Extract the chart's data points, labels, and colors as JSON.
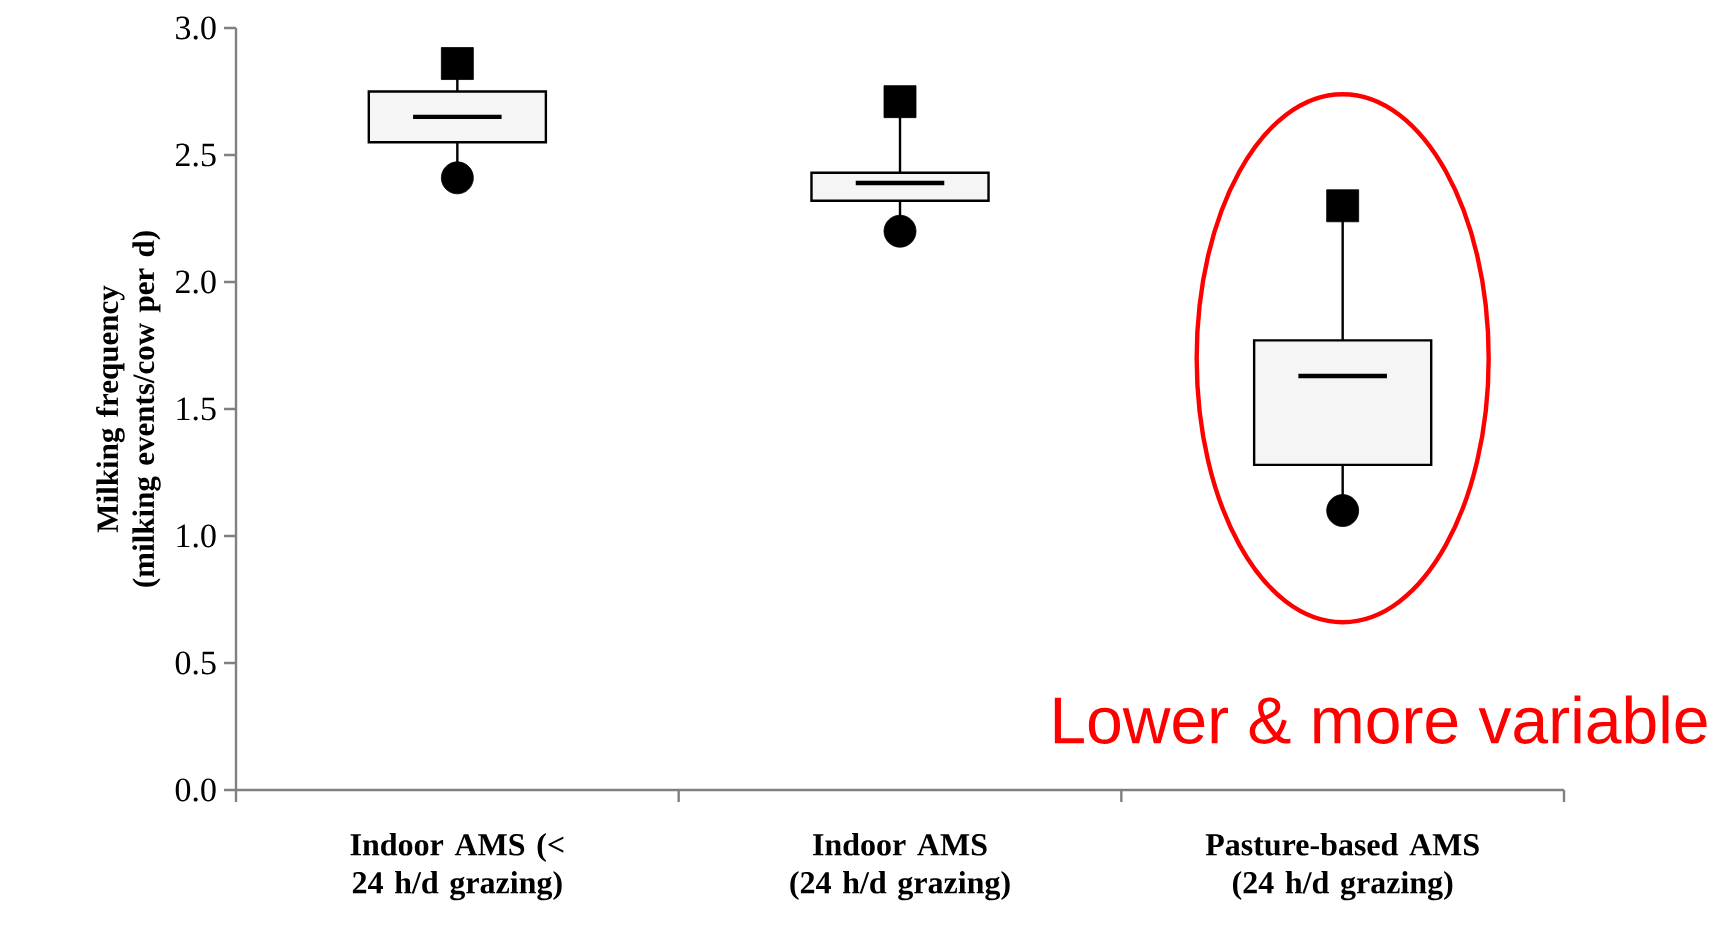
{
  "chart_data": {
    "type": "box",
    "ylabel": "Milking frequency (milking events/cow per d)",
    "categories": [
      "Indoor AMS (< 24 h/d grazing)",
      "Indoor AMS (24 h/d grazing)",
      "Pasture-based AMS (24 h/d grazing)"
    ],
    "boxes": [
      {
        "low": 2.41,
        "q1": 2.55,
        "median": 2.65,
        "q3": 2.75,
        "high": 2.86
      },
      {
        "low": 2.2,
        "q1": 2.32,
        "median": 2.39,
        "q3": 2.43,
        "high": 2.71
      },
      {
        "low": 1.1,
        "q1": 1.28,
        "median": 1.63,
        "q3": 1.77,
        "high": 2.3
      }
    ],
    "series": [
      {
        "type": "scatter",
        "marker": "square",
        "color": "#000000",
        "x": [
          "Indoor AMS (< 24 h/d grazing)",
          "Indoor AMS (24 h/d grazing)",
          "Pasture-based AMS (24 h/d grazing)"
        ],
        "values": [
          2.86,
          2.71,
          2.3
        ]
      },
      {
        "type": "scatter",
        "marker": "circle",
        "color": "#000000",
        "x": [
          "Indoor AMS (< 24 h/d grazing)",
          "Indoor AMS (24 h/d grazing)",
          "Pasture-based AMS (24 h/d grazing)"
        ],
        "values": [
          2.41,
          2.2,
          1.1
        ]
      }
    ],
    "ylim": [
      0,
      3
    ],
    "yticks": [
      {
        "value": 0,
        "label": "0.0"
      },
      0.5,
      {
        "value": 1,
        "label": "1.0"
      },
      1.5,
      {
        "value": 2,
        "label": "2.0"
      },
      2.5,
      {
        "value": 3,
        "label": "3.0"
      }
    ],
    "annotations": [
      "Lower & more variable"
    ]
  }
}
